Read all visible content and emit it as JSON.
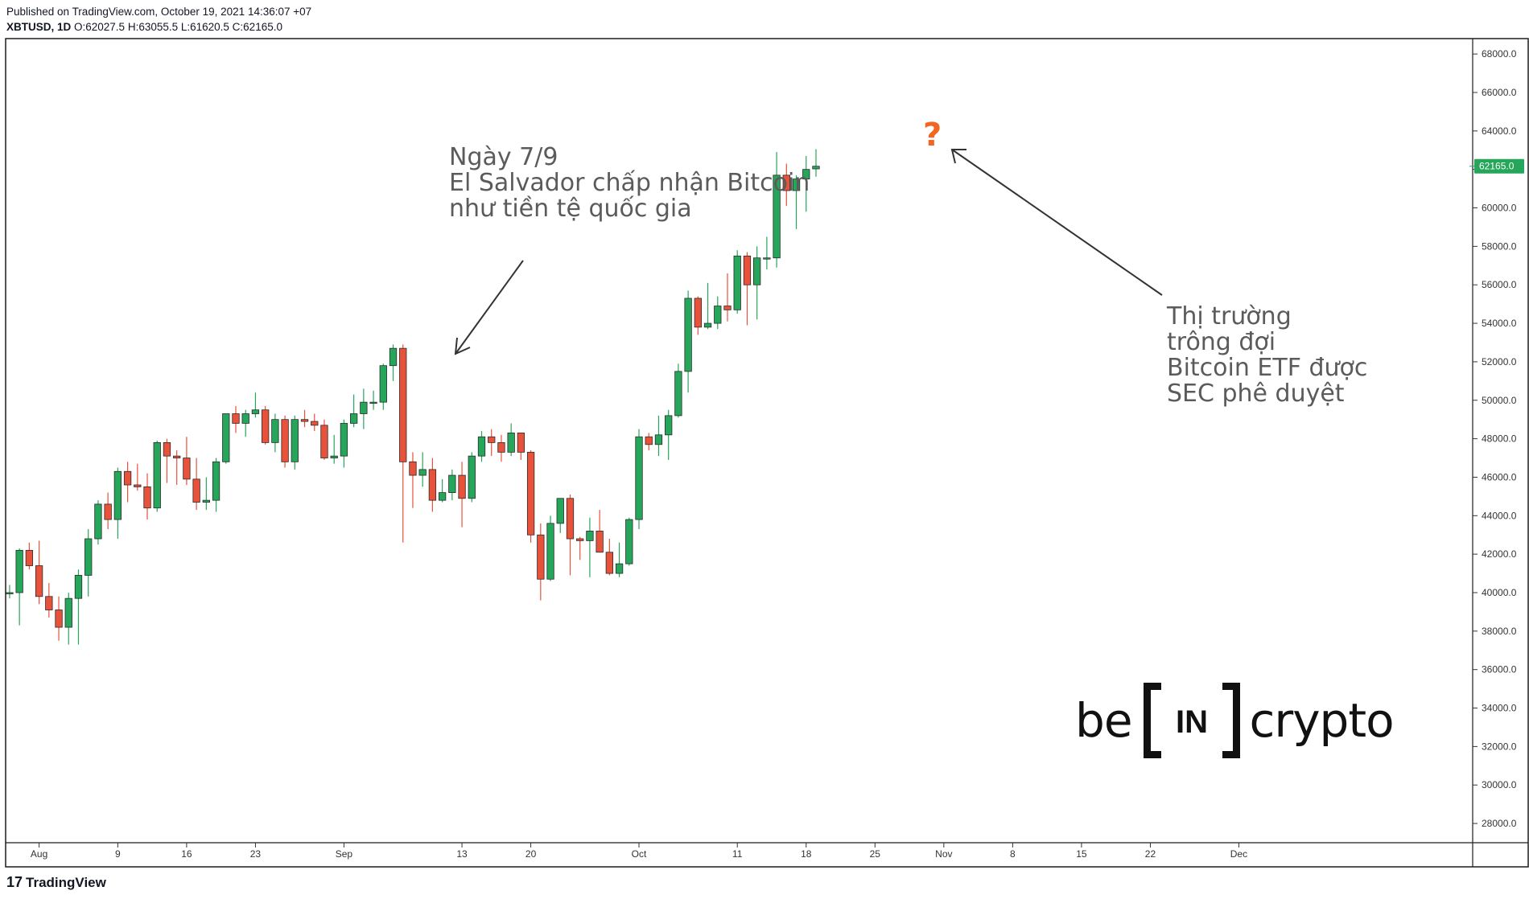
{
  "header": {
    "published": "Published on TradingView.com, October 19, 2021 14:36:07 +07",
    "symbol": "XBTUSD, 1D",
    "ohlc": " O:62027.5 H:63055.5 L:61620.5 C:62165.0"
  },
  "price_label": "62165.0",
  "annotation_left": {
    "line1": "Ngày 7/9",
    "line2": "El Salvador chấp nhận Bitcoin",
    "line3": "như tiền tệ quốc gia"
  },
  "annotation_right": {
    "line1": "Thị trường",
    "line2": "trông đợi",
    "line3": "Bitcoin ETF được",
    "line4": "SEC phê duyệt"
  },
  "question_mark": "?",
  "logo": {
    "left": "be",
    "box": "IN",
    "right": "crypto"
  },
  "footer": {
    "brand": "TradingView"
  },
  "colors": {
    "up": "#26a65b",
    "down": "#e8523a",
    "price_badge": "#26a65b",
    "question": "#f26522"
  },
  "chart_data": {
    "type": "candlestick",
    "symbol": "XBTUSD",
    "interval": "1D",
    "y_ticks": [
      28000,
      30000,
      32000,
      34000,
      36000,
      38000,
      40000,
      42000,
      44000,
      46000,
      48000,
      50000,
      52000,
      54000,
      56000,
      58000,
      60000,
      62000,
      64000,
      66000,
      68000
    ],
    "y_tick_labels": [
      "28000.0",
      "30000.0",
      "32000.0",
      "34000.0",
      "36000.0",
      "38000.0",
      "40000.0",
      "42000.0",
      "44000.0",
      "46000.0",
      "48000.0",
      "50000.0",
      "52000.0",
      "54000.0",
      "56000.0",
      "58000.0",
      "60000.0",
      "62000.0",
      "64000.0",
      "66000.0",
      "68000.0"
    ],
    "ylim": [
      27000,
      68800
    ],
    "x_ticks": [
      {
        "label": "Aug",
        "date": "2021-08-01"
      },
      {
        "label": "9",
        "date": "2021-08-09"
      },
      {
        "label": "16",
        "date": "2021-08-16"
      },
      {
        "label": "23",
        "date": "2021-08-23"
      },
      {
        "label": "Sep",
        "date": "2021-09-01"
      },
      {
        "label": "13",
        "date": "2021-09-13"
      },
      {
        "label": "20",
        "date": "2021-09-20"
      },
      {
        "label": "Oct",
        "date": "2021-10-01"
      },
      {
        "label": "11",
        "date": "2021-10-11"
      },
      {
        "label": "18",
        "date": "2021-10-18"
      },
      {
        "label": "25",
        "date": "2021-10-25"
      },
      {
        "label": "Nov",
        "date": "2021-11-01"
      },
      {
        "label": "8",
        "date": "2021-11-08"
      },
      {
        "label": "15",
        "date": "2021-11-15"
      },
      {
        "label": "22",
        "date": "2021-11-22"
      },
      {
        "label": "Dec",
        "date": "2021-12-01"
      }
    ],
    "candles": [
      {
        "date": "2021-07-29",
        "o": 40000,
        "h": 40400,
        "l": 39700,
        "c": 40000
      },
      {
        "date": "2021-07-30",
        "o": 40000,
        "h": 42300,
        "l": 38300,
        "c": 42200
      },
      {
        "date": "2021-07-31",
        "o": 42200,
        "h": 42600,
        "l": 41200,
        "c": 41400
      },
      {
        "date": "2021-08-01",
        "o": 41400,
        "h": 42700,
        "l": 39400,
        "c": 39800
      },
      {
        "date": "2021-08-02",
        "o": 39800,
        "h": 40500,
        "l": 38700,
        "c": 39100
      },
      {
        "date": "2021-08-03",
        "o": 39100,
        "h": 39800,
        "l": 37500,
        "c": 38200
      },
      {
        "date": "2021-08-04",
        "o": 38200,
        "h": 40000,
        "l": 37300,
        "c": 39700
      },
      {
        "date": "2021-08-05",
        "o": 39700,
        "h": 41200,
        "l": 37300,
        "c": 40900
      },
      {
        "date": "2021-08-06",
        "o": 40900,
        "h": 43300,
        "l": 39800,
        "c": 42800
      },
      {
        "date": "2021-08-07",
        "o": 42800,
        "h": 44800,
        "l": 42500,
        "c": 44600
      },
      {
        "date": "2021-08-08",
        "o": 44600,
        "h": 45200,
        "l": 43300,
        "c": 43800
      },
      {
        "date": "2021-08-09",
        "o": 43800,
        "h": 46500,
        "l": 42800,
        "c": 46300
      },
      {
        "date": "2021-08-10",
        "o": 46300,
        "h": 46800,
        "l": 44700,
        "c": 45600
      },
      {
        "date": "2021-08-11",
        "o": 45600,
        "h": 46700,
        "l": 45300,
        "c": 45500
      },
      {
        "date": "2021-08-12",
        "o": 45500,
        "h": 46200,
        "l": 43800,
        "c": 44400
      },
      {
        "date": "2021-08-13",
        "o": 44400,
        "h": 47900,
        "l": 44200,
        "c": 47800
      },
      {
        "date": "2021-08-14",
        "o": 47800,
        "h": 48000,
        "l": 45700,
        "c": 47100
      },
      {
        "date": "2021-08-15",
        "o": 47100,
        "h": 47400,
        "l": 45600,
        "c": 47000
      },
      {
        "date": "2021-08-16",
        "o": 47000,
        "h": 48100,
        "l": 45600,
        "c": 45900
      },
      {
        "date": "2021-08-17",
        "o": 45900,
        "h": 47000,
        "l": 44300,
        "c": 44700
      },
      {
        "date": "2021-08-18",
        "o": 44700,
        "h": 46000,
        "l": 44300,
        "c": 44800
      },
      {
        "date": "2021-08-19",
        "o": 44800,
        "h": 47000,
        "l": 44200,
        "c": 46800
      },
      {
        "date": "2021-08-20",
        "o": 46800,
        "h": 49300,
        "l": 46700,
        "c": 49300
      },
      {
        "date": "2021-08-21",
        "o": 49300,
        "h": 49700,
        "l": 48300,
        "c": 48800
      },
      {
        "date": "2021-08-22",
        "o": 48800,
        "h": 49500,
        "l": 48100,
        "c": 49300
      },
      {
        "date": "2021-08-23",
        "o": 49300,
        "h": 50400,
        "l": 49100,
        "c": 49500
      },
      {
        "date": "2021-08-24",
        "o": 49500,
        "h": 49700,
        "l": 47700,
        "c": 47800
      },
      {
        "date": "2021-08-25",
        "o": 47800,
        "h": 49300,
        "l": 47300,
        "c": 49000
      },
      {
        "date": "2021-08-26",
        "o": 49000,
        "h": 49200,
        "l": 46500,
        "c": 46800
      },
      {
        "date": "2021-08-27",
        "o": 46800,
        "h": 49200,
        "l": 46400,
        "c": 49000
      },
      {
        "date": "2021-08-28",
        "o": 49000,
        "h": 49500,
        "l": 48600,
        "c": 48900
      },
      {
        "date": "2021-08-29",
        "o": 48900,
        "h": 49300,
        "l": 48400,
        "c": 48700
      },
      {
        "date": "2021-08-30",
        "o": 48700,
        "h": 49000,
        "l": 46900,
        "c": 47000
      },
      {
        "date": "2021-08-31",
        "o": 47000,
        "h": 48200,
        "l": 46700,
        "c": 47100
      },
      {
        "date": "2021-09-01",
        "o": 47100,
        "h": 49000,
        "l": 46500,
        "c": 48800
      },
      {
        "date": "2021-09-02",
        "o": 48800,
        "h": 50300,
        "l": 48600,
        "c": 49300
      },
      {
        "date": "2021-09-03",
        "o": 49300,
        "h": 50600,
        "l": 48500,
        "c": 49900
      },
      {
        "date": "2021-09-04",
        "o": 49900,
        "h": 50500,
        "l": 49500,
        "c": 49900
      },
      {
        "date": "2021-09-05",
        "o": 49900,
        "h": 51900,
        "l": 49500,
        "c": 51800
      },
      {
        "date": "2021-09-06",
        "o": 51800,
        "h": 52900,
        "l": 51000,
        "c": 52700
      },
      {
        "date": "2021-09-07",
        "o": 52700,
        "h": 52900,
        "l": 42600,
        "c": 46800
      },
      {
        "date": "2021-09-08",
        "o": 46800,
        "h": 47300,
        "l": 44400,
        "c": 46100
      },
      {
        "date": "2021-09-09",
        "o": 46100,
        "h": 47300,
        "l": 45500,
        "c": 46400
      },
      {
        "date": "2021-09-10",
        "o": 46400,
        "h": 47000,
        "l": 44200,
        "c": 44800
      },
      {
        "date": "2021-09-11",
        "o": 44800,
        "h": 45900,
        "l": 44700,
        "c": 45200
      },
      {
        "date": "2021-09-12",
        "o": 45200,
        "h": 46400,
        "l": 44800,
        "c": 46100
      },
      {
        "date": "2021-09-13",
        "o": 46100,
        "h": 46800,
        "l": 43400,
        "c": 44900
      },
      {
        "date": "2021-09-14",
        "o": 44900,
        "h": 47300,
        "l": 44700,
        "c": 47100
      },
      {
        "date": "2021-09-15",
        "o": 47100,
        "h": 48400,
        "l": 46800,
        "c": 48100
      },
      {
        "date": "2021-09-16",
        "o": 48100,
        "h": 48500,
        "l": 47100,
        "c": 47800
      },
      {
        "date": "2021-09-17",
        "o": 47800,
        "h": 48200,
        "l": 46800,
        "c": 47300
      },
      {
        "date": "2021-09-18",
        "o": 47300,
        "h": 48800,
        "l": 47100,
        "c": 48300
      },
      {
        "date": "2021-09-19",
        "o": 48300,
        "h": 48300,
        "l": 46900,
        "c": 47300
      },
      {
        "date": "2021-09-20",
        "o": 47300,
        "h": 47400,
        "l": 42600,
        "c": 43000
      },
      {
        "date": "2021-09-21",
        "o": 43000,
        "h": 43600,
        "l": 39600,
        "c": 40700
      },
      {
        "date": "2021-09-22",
        "o": 40700,
        "h": 44000,
        "l": 40600,
        "c": 43600
      },
      {
        "date": "2021-09-23",
        "o": 43600,
        "h": 44900,
        "l": 43100,
        "c": 44900
      },
      {
        "date": "2021-09-24",
        "o": 44900,
        "h": 45100,
        "l": 40900,
        "c": 42800
      },
      {
        "date": "2021-09-25",
        "o": 42800,
        "h": 42900,
        "l": 41700,
        "c": 42700
      },
      {
        "date": "2021-09-26",
        "o": 42700,
        "h": 43900,
        "l": 40800,
        "c": 43200
      },
      {
        "date": "2021-09-27",
        "o": 43200,
        "h": 44300,
        "l": 42100,
        "c": 42100
      },
      {
        "date": "2021-09-28",
        "o": 42100,
        "h": 42800,
        "l": 40900,
        "c": 41000
      },
      {
        "date": "2021-09-29",
        "o": 41000,
        "h": 42600,
        "l": 40800,
        "c": 41500
      },
      {
        "date": "2021-09-30",
        "o": 41500,
        "h": 43900,
        "l": 41400,
        "c": 43800
      },
      {
        "date": "2021-10-01",
        "o": 43800,
        "h": 48500,
        "l": 43300,
        "c": 48100
      },
      {
        "date": "2021-10-02",
        "o": 48100,
        "h": 48300,
        "l": 47400,
        "c": 47700
      },
      {
        "date": "2021-10-03",
        "o": 47700,
        "h": 49200,
        "l": 47100,
        "c": 48200
      },
      {
        "date": "2021-10-04",
        "o": 48200,
        "h": 49500,
        "l": 46900,
        "c": 49200
      },
      {
        "date": "2021-10-05",
        "o": 49200,
        "h": 51900,
        "l": 49100,
        "c": 51500
      },
      {
        "date": "2021-10-06",
        "o": 51500,
        "h": 55700,
        "l": 50400,
        "c": 55300
      },
      {
        "date": "2021-10-07",
        "o": 55300,
        "h": 55400,
        "l": 53400,
        "c": 53800
      },
      {
        "date": "2021-10-08",
        "o": 53800,
        "h": 56100,
        "l": 53700,
        "c": 54000
      },
      {
        "date": "2021-10-09",
        "o": 54000,
        "h": 55400,
        "l": 53700,
        "c": 54900
      },
      {
        "date": "2021-10-10",
        "o": 54900,
        "h": 56600,
        "l": 54100,
        "c": 54700
      },
      {
        "date": "2021-10-11",
        "o": 54700,
        "h": 57800,
        "l": 54500,
        "c": 57500
      },
      {
        "date": "2021-10-12",
        "o": 57500,
        "h": 57700,
        "l": 53900,
        "c": 56000
      },
      {
        "date": "2021-10-13",
        "o": 56000,
        "h": 58000,
        "l": 54200,
        "c": 57400
      },
      {
        "date": "2021-10-14",
        "o": 57400,
        "h": 58500,
        "l": 56800,
        "c": 57400
      },
      {
        "date": "2021-10-15",
        "o": 57400,
        "h": 62900,
        "l": 56900,
        "c": 61700
      },
      {
        "date": "2021-10-16",
        "o": 61700,
        "h": 62300,
        "l": 60100,
        "c": 60900
      },
      {
        "date": "2021-10-17",
        "o": 60900,
        "h": 61700,
        "l": 58900,
        "c": 61500
      },
      {
        "date": "2021-10-18",
        "o": 61500,
        "h": 62700,
        "l": 59800,
        "c": 62000
      },
      {
        "date": "2021-10-19",
        "o": 62027.5,
        "h": 63055.5,
        "l": 61620.5,
        "c": 62165.0
      }
    ]
  }
}
